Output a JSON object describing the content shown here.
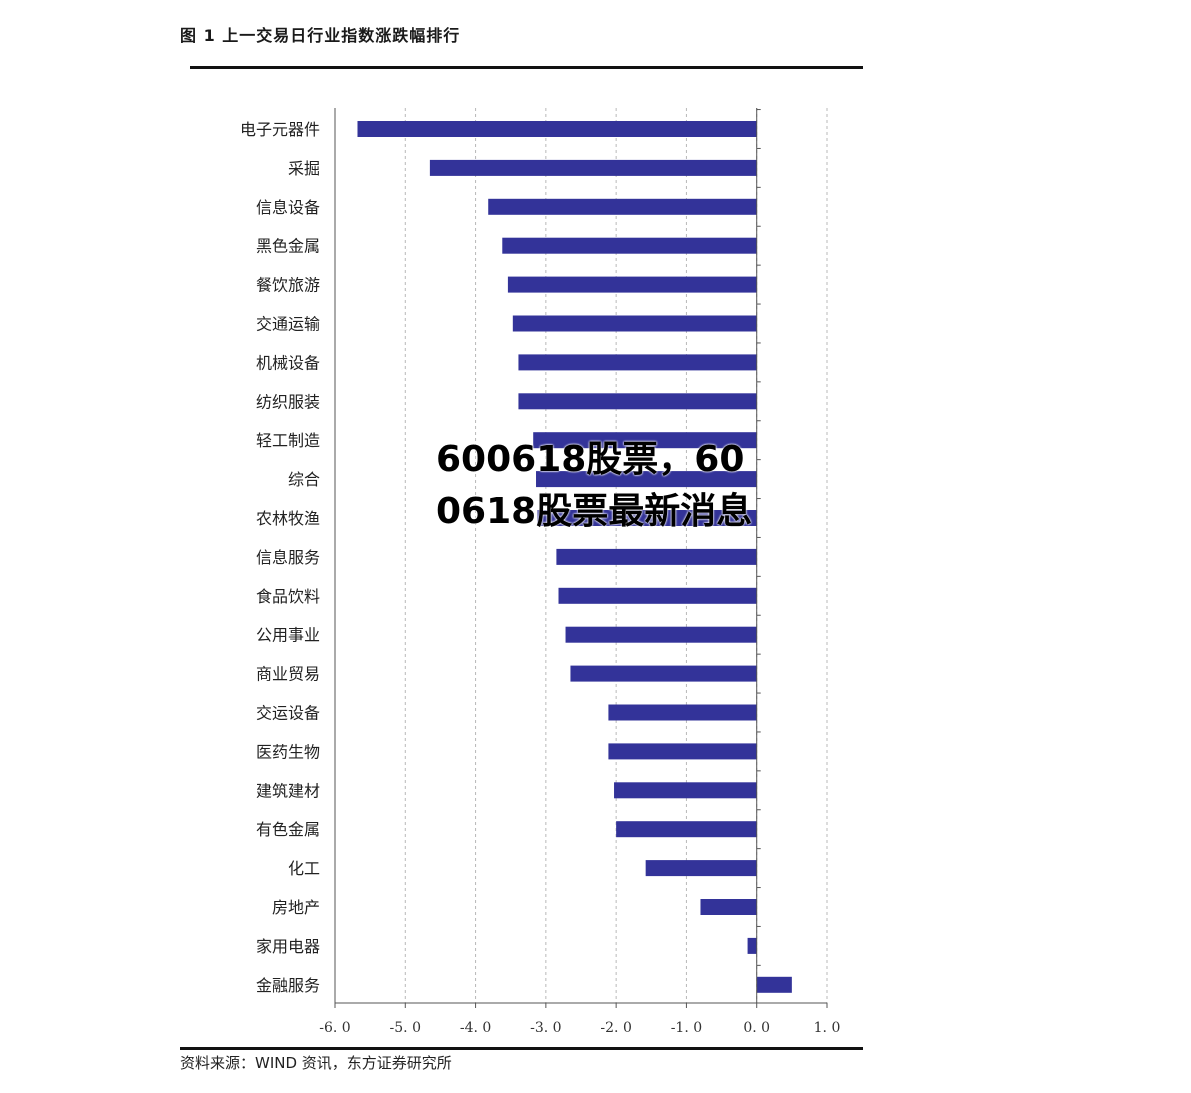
{
  "figure": {
    "title": "图 1  上一交易日行业指数涨跌幅排行",
    "source": "资料来源：WIND 资讯，东方证券研究所"
  },
  "overlay": {
    "title": "600618股票，600618股票最新消息"
  },
  "chart_data": {
    "type": "bar",
    "orientation": "horizontal",
    "title": "",
    "xlabel": "",
    "ylabel": "",
    "xlim": [
      -6.0,
      1.0
    ],
    "xticks": [
      "-6.0",
      "-5.0",
      "-4.0",
      "-3.0",
      "-2.0",
      "-1.0",
      "0.0",
      "1.0"
    ],
    "grid": "vertical-dashed",
    "bar_color": "#333399",
    "categories": [
      "电子元器件",
      "采掘",
      "信息设备",
      "黑色金属",
      "餐饮旅游",
      "交通运输",
      "机械设备",
      "纺织服装",
      "轻工制造",
      "综合",
      "农林牧渔",
      "信息服务",
      "食品饮料",
      "公用事业",
      "商业贸易",
      "交运设备",
      "医药生物",
      "建筑建材",
      "有色金属",
      "化工",
      "房地产",
      "家用电器",
      "金融服务"
    ],
    "values": [
      -5.68,
      -4.65,
      -3.82,
      -3.62,
      -3.54,
      -3.47,
      -3.39,
      -3.39,
      -3.18,
      -3.14,
      -3.12,
      -2.85,
      -2.82,
      -2.72,
      -2.65,
      -2.11,
      -2.11,
      -2.03,
      -2.0,
      -1.58,
      -0.8,
      -0.13,
      0.5
    ]
  }
}
